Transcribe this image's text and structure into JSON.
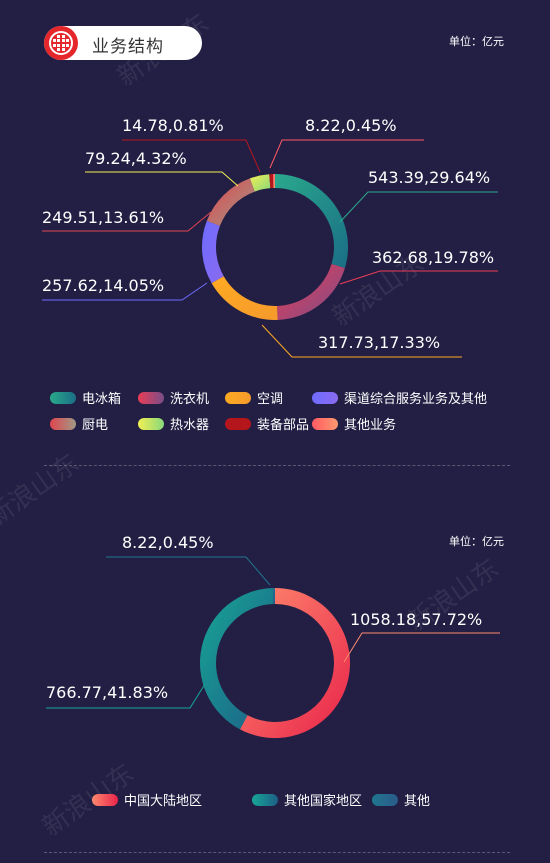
{
  "header": {
    "title": "业务结构"
  },
  "unit_label": "单位：亿元",
  "watermark": "新浪山东",
  "chart_data": [
    {
      "type": "pie",
      "categories": [
        "电冰箱",
        "洗衣机",
        "空调",
        "渠道综合服务业务及其他",
        "厨电",
        "热水器",
        "装备部品",
        "其他业务"
      ],
      "values": [
        543.39,
        362.68,
        317.73,
        257.62,
        249.51,
        79.24,
        14.78,
        8.22
      ],
      "percents": [
        29.64,
        19.78,
        17.33,
        14.05,
        13.61,
        4.32,
        0.81,
        0.45
      ],
      "data_labels": [
        "543.39,29.64%",
        "362.68,19.78%",
        "317.73,17.33%",
        "257.62,14.05%",
        "249.51,13.61%",
        "79.24,4.32%",
        "14.78,0.81%",
        "8.22,0.45%"
      ],
      "colors": [
        [
          "#2aa98c",
          "#1a6e86"
        ],
        [
          "#ea3d55",
          "#7a4d8a"
        ],
        [
          "#ffaa22",
          "#f59a2c"
        ],
        [
          "#6f6bff",
          "#8a6bf0"
        ],
        [
          "#e0454f",
          "#a09a86"
        ],
        [
          "#f3ef55",
          "#88d87a"
        ],
        [
          "#b5161c",
          "#b5161c"
        ],
        [
          "#ff5a63",
          "#ff9a6e"
        ]
      ],
      "legend_rows": [
        [
          0,
          1,
          2,
          3
        ],
        [
          4,
          5,
          6,
          7
        ]
      ],
      "legend_placement": "bottom"
    },
    {
      "type": "pie",
      "categories": [
        "中国大陆地区",
        "其他国家地区",
        "其他"
      ],
      "values": [
        1058.18,
        766.77,
        8.22
      ],
      "percents": [
        57.72,
        41.83,
        0.45
      ],
      "data_labels": [
        "1058.18,57.72%",
        "766.77,41.83%",
        "8.22,0.45%"
      ],
      "colors": [
        [
          "#ff8a6e",
          "#e8234a"
        ],
        [
          "#17a595",
          "#1d5f87"
        ],
        [
          "#20758e",
          "#2a5c8a"
        ]
      ],
      "legend_rows": [
        [
          0,
          1,
          2
        ]
      ],
      "legend_placement": "bottom"
    }
  ]
}
